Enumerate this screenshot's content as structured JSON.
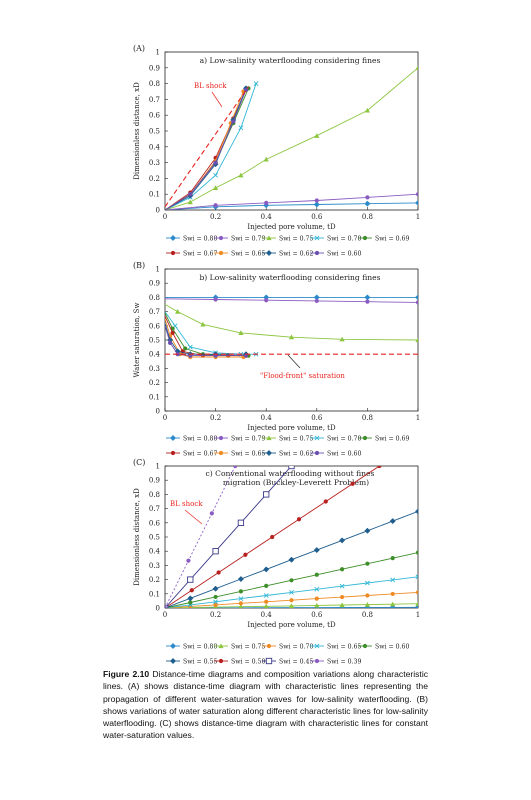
{
  "figure_caption": {
    "label": "Figure 2.10",
    "text": "Distance-time diagrams and composition variations along characteristic lines. (A) shows distance-time diagram with characteristic lines representing the propagation of different water-saturation waves for low-salinity waterflooding. (B) shows variations of water saturation along different characteristic lines for low-salinity waterflooding. (C) shows distance-time diagram with characteristic lines for constant water-saturation values."
  },
  "chart_data": [
    {
      "panel_label": "(A)",
      "type": "line",
      "title": "a) Low-salinity waterflooding considering fines",
      "xlabel": "Injected pore volume, tD",
      "ylabel": "Dimensionless distance, xD",
      "xlim": [
        0,
        1
      ],
      "ylim": [
        0,
        1
      ],
      "xticks": [
        "0",
        "0.2",
        "0.4",
        "0.6",
        "0.8",
        "1"
      ],
      "yticks": [
        "0",
        "0.1",
        "0.2",
        "0.3",
        "0.4",
        "0.5",
        "0.6",
        "0.7",
        "0.8",
        "0.9",
        "1"
      ],
      "grid": false,
      "legend_position": "bottom",
      "annotations": [
        {
          "text": "BL shock",
          "color": "#e8231e"
        }
      ],
      "reference_line": {
        "style": "dashed",
        "color": "#e8231e",
        "points": [
          [
            0,
            0.02
          ],
          [
            0.33,
            0.78
          ]
        ]
      },
      "series": [
        {
          "name": "Swi = 0.80",
          "color": "#2b8bc9",
          "marker": "diamond",
          "points": [
            [
              0,
              0
            ],
            [
              0.2,
              0.02
            ],
            [
              0.4,
              0.03
            ],
            [
              0.6,
              0.035
            ],
            [
              0.8,
              0.04
            ],
            [
              1,
              0.045
            ]
          ]
        },
        {
          "name": "Swi = 0.79",
          "color": "#8a5cc2",
          "marker": "circle",
          "points": [
            [
              0,
              0
            ],
            [
              0.2,
              0.03
            ],
            [
              0.4,
              0.045
            ],
            [
              0.6,
              0.06
            ],
            [
              0.8,
              0.08
            ],
            [
              1,
              0.1
            ]
          ]
        },
        {
          "name": "Swi = 0.75",
          "color": "#8cc63f",
          "marker": "triangle",
          "points": [
            [
              0,
              0
            ],
            [
              0.1,
              0.05
            ],
            [
              0.2,
              0.14
            ],
            [
              0.3,
              0.22
            ],
            [
              0.4,
              0.32
            ],
            [
              0.6,
              0.47
            ],
            [
              0.8,
              0.63
            ],
            [
              1,
              0.9
            ]
          ]
        },
        {
          "name": "Swi = 0.70",
          "color": "#33b7d6",
          "marker": "x",
          "points": [
            [
              0,
              0
            ],
            [
              0.1,
              0.08
            ],
            [
              0.2,
              0.22
            ],
            [
              0.3,
              0.52
            ],
            [
              0.36,
              0.8
            ]
          ]
        },
        {
          "name": "Swi = 0.69",
          "color": "#3e8e2a",
          "marker": "circle",
          "points": [
            [
              0,
              0
            ],
            [
              0.1,
              0.1
            ],
            [
              0.2,
              0.3
            ],
            [
              0.27,
              0.55
            ],
            [
              0.33,
              0.77
            ]
          ]
        },
        {
          "name": "Swi = 0.67",
          "color": "#b8201f",
          "marker": "circle",
          "points": [
            [
              0,
              0
            ],
            [
              0.1,
              0.11
            ],
            [
              0.2,
              0.33
            ],
            [
              0.27,
              0.58
            ],
            [
              0.32,
              0.76
            ]
          ]
        },
        {
          "name": "Swi = 0.65",
          "color": "#f08a24",
          "marker": "circle",
          "points": [
            [
              0,
              0
            ],
            [
              0.1,
              0.1
            ],
            [
              0.2,
              0.31
            ],
            [
              0.26,
              0.55
            ],
            [
              0.31,
              0.75
            ]
          ]
        },
        {
          "name": "Swi = 0.62",
          "color": "#1f5e8f",
          "marker": "diamond",
          "points": [
            [
              0,
              0
            ],
            [
              0.1,
              0.09
            ],
            [
              0.2,
              0.29
            ],
            [
              0.27,
              0.57
            ],
            [
              0.32,
              0.77
            ]
          ]
        },
        {
          "name": "Swi = 0.60",
          "color": "#6a4fb0",
          "marker": "circle",
          "points": [
            [
              0,
              0
            ],
            [
              0.1,
              0.1
            ],
            [
              0.2,
              0.3
            ],
            [
              0.27,
              0.56
            ],
            [
              0.32,
              0.76
            ]
          ]
        }
      ]
    },
    {
      "panel_label": "(B)",
      "type": "line",
      "title": "b) Low-salinity waterflooding considering fines",
      "xlabel": "Injected pore volume, tD",
      "ylabel": "Water saturation, Sw",
      "xlim": [
        0,
        1
      ],
      "ylim": [
        0,
        1
      ],
      "xticks": [
        "0",
        "0.2",
        "0.4",
        "0.6",
        "0.8",
        "1"
      ],
      "yticks": [
        "0",
        "0.1",
        "0.2",
        "0.3",
        "0.4",
        "0.5",
        "0.6",
        "0.7",
        "0.8",
        "0.9",
        "1"
      ],
      "grid": false,
      "legend_position": "bottom",
      "annotations": [
        {
          "text": "\"Flood-front\" saturation",
          "color": "#e8231e"
        }
      ],
      "reference_line": {
        "style": "dashed",
        "color": "#e8231e",
        "points": [
          [
            0,
            0.4
          ],
          [
            1,
            0.4
          ]
        ]
      },
      "series": [
        {
          "name": "Swi = 0.80",
          "color": "#2b8bc9",
          "marker": "diamond",
          "points": [
            [
              0,
              0.8
            ],
            [
              0.2,
              0.8
            ],
            [
              0.4,
              0.8
            ],
            [
              0.6,
              0.8
            ],
            [
              0.8,
              0.8
            ],
            [
              1,
              0.8
            ]
          ]
        },
        {
          "name": "Swi = 0.79",
          "color": "#8a5cc2",
          "marker": "circle",
          "points": [
            [
              0,
              0.79
            ],
            [
              0.2,
              0.785
            ],
            [
              0.4,
              0.78
            ],
            [
              0.6,
              0.775
            ],
            [
              0.8,
              0.77
            ],
            [
              1,
              0.765
            ]
          ]
        },
        {
          "name": "Swi = 0.75",
          "color": "#8cc63f",
          "marker": "triangle",
          "points": [
            [
              0,
              0.75
            ],
            [
              0.05,
              0.7
            ],
            [
              0.15,
              0.61
            ],
            [
              0.3,
              0.55
            ],
            [
              0.5,
              0.52
            ],
            [
              0.7,
              0.505
            ],
            [
              1,
              0.5
            ]
          ]
        },
        {
          "name": "Swi = 0.70",
          "color": "#33b7d6",
          "marker": "x",
          "points": [
            [
              0,
              0.7
            ],
            [
              0.04,
              0.6
            ],
            [
              0.1,
              0.45
            ],
            [
              0.2,
              0.41
            ],
            [
              0.3,
              0.4
            ],
            [
              0.36,
              0.4
            ]
          ]
        },
        {
          "name": "Swi = 0.69",
          "color": "#3e8e2a",
          "marker": "circle",
          "points": [
            [
              0,
              0.69
            ],
            [
              0.03,
              0.58
            ],
            [
              0.08,
              0.44
            ],
            [
              0.15,
              0.4
            ],
            [
              0.25,
              0.39
            ],
            [
              0.33,
              0.39
            ]
          ]
        },
        {
          "name": "Swi = 0.67",
          "color": "#b8201f",
          "marker": "circle",
          "points": [
            [
              0,
              0.67
            ],
            [
              0.03,
              0.55
            ],
            [
              0.07,
              0.42
            ],
            [
              0.15,
              0.39
            ],
            [
              0.25,
              0.39
            ],
            [
              0.32,
              0.39
            ]
          ]
        },
        {
          "name": "Swi = 0.65",
          "color": "#f08a24",
          "marker": "circle",
          "points": [
            [
              0,
              0.65
            ],
            [
              0.02,
              0.53
            ],
            [
              0.06,
              0.4
            ],
            [
              0.1,
              0.38
            ],
            [
              0.2,
              0.38
            ],
            [
              0.31,
              0.38
            ]
          ]
        },
        {
          "name": "Swi = 0.62",
          "color": "#1f5e8f",
          "marker": "diamond",
          "points": [
            [
              0,
              0.62
            ],
            [
              0.02,
              0.5
            ],
            [
              0.05,
              0.42
            ],
            [
              0.1,
              0.4
            ],
            [
              0.2,
              0.4
            ],
            [
              0.32,
              0.4
            ]
          ]
        },
        {
          "name": "Swi = 0.60",
          "color": "#6a4fb0",
          "marker": "circle",
          "points": [
            [
              0,
              0.6
            ],
            [
              0.02,
              0.48
            ],
            [
              0.05,
              0.4
            ],
            [
              0.1,
              0.39
            ],
            [
              0.2,
              0.39
            ],
            [
              0.32,
              0.39
            ]
          ]
        }
      ]
    },
    {
      "panel_label": "(C)",
      "type": "line",
      "title": "c) Conventional waterflooding without fines migration (Buckley-Leverett Problem)",
      "xlabel": "Injected pore volume, tD",
      "ylabel": "Dimensionless distance, xD",
      "xlim": [
        0,
        1
      ],
      "ylim": [
        0,
        1
      ],
      "xticks": [
        "0",
        "0.2",
        "0.4",
        "0.6",
        "0.8",
        "1"
      ],
      "yticks": [
        "0",
        "0.1",
        "0.2",
        "0.3",
        "0.4",
        "0.5",
        "0.6",
        "0.7",
        "0.8",
        "0.9",
        "1"
      ],
      "grid": false,
      "legend_position": "bottom",
      "annotations": [
        {
          "text": "BL shock",
          "color": "#e8231e"
        }
      ],
      "series": [
        {
          "name": "Swi = 0.80",
          "color": "#2b8bc9",
          "marker": "diamond",
          "slope": 0.005
        },
        {
          "name": "Swi = 0.75",
          "color": "#8cc63f",
          "marker": "triangle",
          "slope": 0.03
        },
        {
          "name": "Swi = 0.70",
          "color": "#f08a24",
          "marker": "circle",
          "slope": 0.11
        },
        {
          "name": "Swi = 0.65",
          "color": "#33b7d6",
          "marker": "x",
          "slope": 0.22
        },
        {
          "name": "Swi = 0.60",
          "color": "#3e8e2a",
          "marker": "circle",
          "slope": 0.39
        },
        {
          "name": "Swi = 0.55",
          "color": "#1f5e8f",
          "marker": "diamond",
          "slope": 0.68
        },
        {
          "name": "Swi = 0.50",
          "color": "#b8201f",
          "marker": "circle",
          "slope": 1.18
        },
        {
          "name": "Swi = 0.45",
          "color": "#3a3a8c",
          "marker": "square",
          "slope": 2.0
        },
        {
          "name": "Swi = 0.39",
          "color": "#8a5cc2",
          "marker": "circle",
          "slope": 3.6,
          "dashed": true
        }
      ]
    }
  ]
}
